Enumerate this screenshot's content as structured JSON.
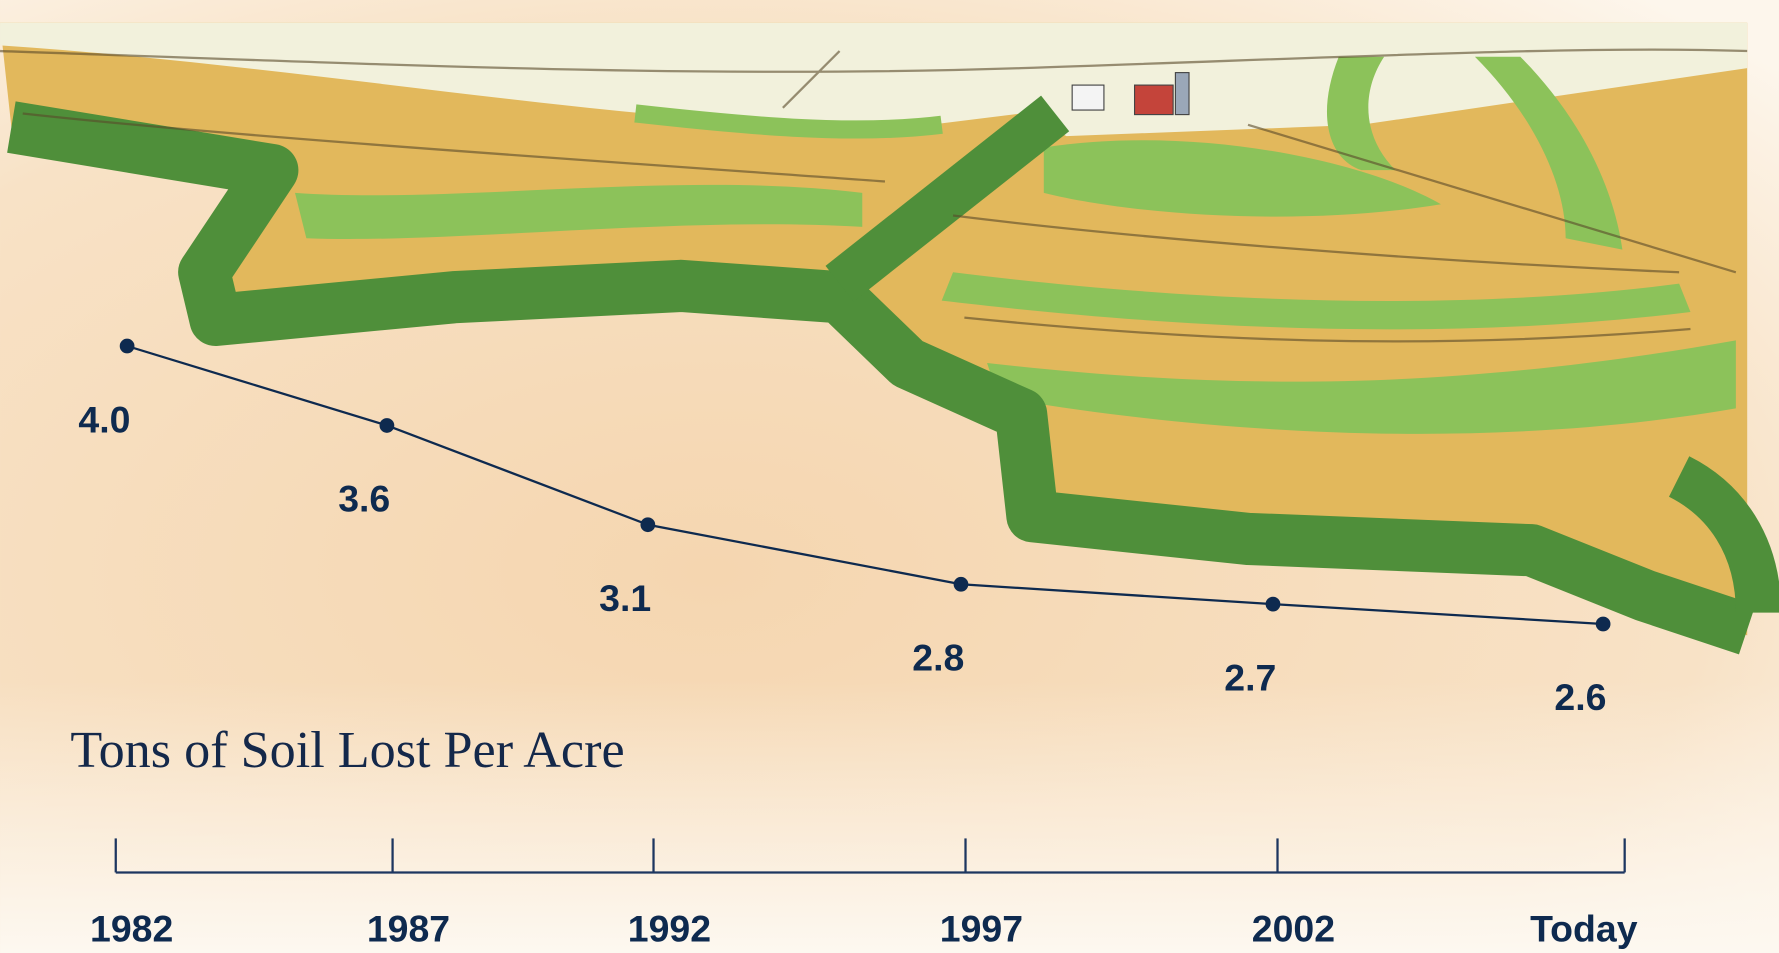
{
  "chart_data": {
    "type": "line",
    "title": "Tons of Soil Lost Per Acre",
    "categories": [
      "1982",
      "1987",
      "1992",
      "1997",
      "2002",
      "Today"
    ],
    "values": [
      4.0,
      3.6,
      3.1,
      2.8,
      2.7,
      2.6
    ],
    "value_labels": [
      "4.0",
      "3.6",
      "3.1",
      "2.8",
      "2.7",
      "2.6"
    ],
    "color": "#0e2a4f"
  }
}
